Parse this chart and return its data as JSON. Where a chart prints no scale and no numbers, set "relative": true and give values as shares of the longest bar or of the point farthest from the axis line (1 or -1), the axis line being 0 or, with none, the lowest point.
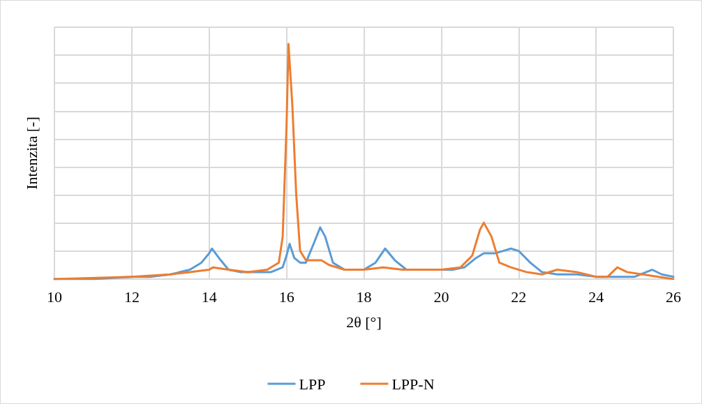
{
  "chart_data": {
    "type": "line",
    "xlabel": "2θ [°]",
    "ylabel": "Intenzita [-]",
    "relative": true,
    "xlim": [
      10,
      26
    ],
    "xticks": [
      10,
      12,
      14,
      16,
      18,
      20,
      22,
      24,
      26
    ],
    "grid": true,
    "legend": "bottom",
    "marker": "none",
    "line_style": "solid",
    "series": [
      {
        "name": "LPP",
        "color": "#5b9bd5",
        "x": [
          10,
          11,
          12,
          12.5,
          13,
          13.5,
          13.8,
          14.0,
          14.07,
          14.3,
          14.5,
          14.8,
          15.2,
          15.6,
          15.9,
          16.0,
          16.08,
          16.2,
          16.35,
          16.5,
          16.7,
          16.87,
          17.0,
          17.2,
          17.5,
          18.0,
          18.3,
          18.55,
          18.8,
          19.1,
          19.6,
          20.0,
          20.3,
          20.6,
          20.9,
          21.1,
          21.4,
          21.6,
          21.8,
          22.0,
          22.3,
          22.6,
          23.0,
          23.5,
          24.0,
          24.5,
          25.0,
          25.3,
          25.45,
          25.7,
          26
        ],
        "values": [
          0,
          0,
          0.01,
          0.01,
          0.02,
          0.04,
          0.07,
          0.11,
          0.13,
          0.08,
          0.04,
          0.03,
          0.03,
          0.03,
          0.05,
          0.1,
          0.15,
          0.09,
          0.07,
          0.07,
          0.15,
          0.22,
          0.18,
          0.07,
          0.04,
          0.04,
          0.07,
          0.13,
          0.08,
          0.04,
          0.04,
          0.04,
          0.04,
          0.05,
          0.09,
          0.11,
          0.11,
          0.12,
          0.13,
          0.12,
          0.07,
          0.03,
          0.02,
          0.02,
          0.01,
          0.01,
          0.01,
          0.03,
          0.04,
          0.02,
          0.01
        ]
      },
      {
        "name": "LPP-N",
        "color": "#ed7d31",
        "x": [
          10,
          12,
          13,
          13.5,
          14.0,
          14.1,
          14.5,
          15,
          15.5,
          15.8,
          15.9,
          16.0,
          16.05,
          16.15,
          16.25,
          16.35,
          16.5,
          16.8,
          16.9,
          17.1,
          17.5,
          18,
          18.5,
          19,
          19.5,
          20,
          20.5,
          20.8,
          21.0,
          21.1,
          21.3,
          21.5,
          21.8,
          22.2,
          22.6,
          23.0,
          23.5,
          24,
          24.3,
          24.55,
          24.8,
          25.2,
          26
        ],
        "values": [
          0,
          0.01,
          0.02,
          0.03,
          0.04,
          0.05,
          0.04,
          0.03,
          0.04,
          0.07,
          0.18,
          0.65,
          1,
          0.74,
          0.36,
          0.12,
          0.08,
          0.08,
          0.08,
          0.06,
          0.04,
          0.04,
          0.05,
          0.04,
          0.04,
          0.04,
          0.05,
          0.1,
          0.21,
          0.24,
          0.18,
          0.07,
          0.05,
          0.03,
          0.02,
          0.04,
          0.03,
          0.01,
          0.01,
          0.05,
          0.03,
          0.02,
          0
        ]
      }
    ]
  }
}
